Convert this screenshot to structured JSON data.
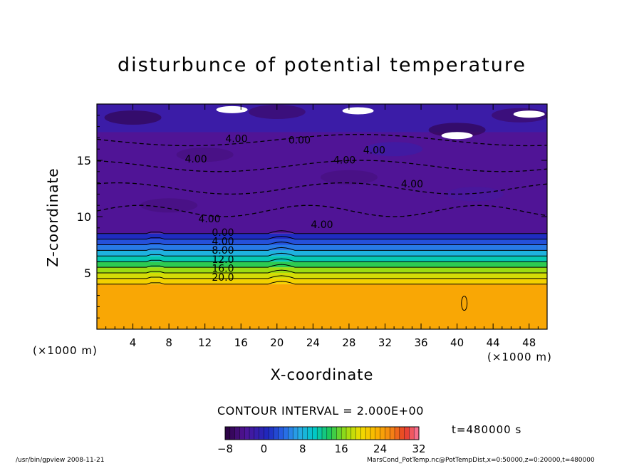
{
  "chart_data": {
    "type": "heatmap",
    "title": "disturbunce of potential temperature",
    "xlabel": "X-coordinate",
    "ylabel": "Z-coordinate",
    "x_unit_left": "(×1000 m)",
    "x_unit_right": "(×1000 m)",
    "xlim": [
      0,
      50
    ],
    "ylim": [
      0,
      20
    ],
    "x_ticks": [
      4,
      8,
      12,
      16,
      20,
      24,
      28,
      32,
      36,
      40,
      44,
      48
    ],
    "x_tick_labels": [
      "4",
      "8",
      "12",
      "16",
      "20",
      "24",
      "28",
      "32",
      "36",
      "40",
      "44",
      "48"
    ],
    "y_ticks": [
      5,
      10,
      15
    ],
    "y_tick_labels": [
      "5",
      "10",
      "15"
    ],
    "contour_interval_label": "CONTOUR INTERVAL = 2.000E+00",
    "contour_interval": 2.0,
    "colorbar": {
      "min": -8,
      "max": 32,
      "ticks": [
        -8,
        0,
        8,
        16,
        24,
        32
      ],
      "tick_labels": [
        "−8",
        "0",
        "8",
        "16",
        "24",
        "32"
      ]
    },
    "contour_labels": [
      {
        "text": "0.00",
        "x": 22.5,
        "z": 16.5
      },
      {
        "text": "4.00",
        "x": 15.5,
        "z": 16.6
      },
      {
        "text": "4.00",
        "x": 11.0,
        "z": 14.8
      },
      {
        "text": "4.00",
        "x": 27.5,
        "z": 14.7
      },
      {
        "text": "4.00",
        "x": 30.8,
        "z": 15.6
      },
      {
        "text": "4.00",
        "x": 35.0,
        "z": 12.6
      },
      {
        "text": "4.00",
        "x": 12.5,
        "z": 9.5
      },
      {
        "text": "4.00",
        "x": 25.0,
        "z": 9.0
      },
      {
        "text": "0.00",
        "x": 14.0,
        "z": 8.3
      },
      {
        "text": "4.00",
        "x": 14.0,
        "z": 7.5
      },
      {
        "text": "8.00",
        "x": 14.0,
        "z": 6.7
      },
      {
        "text": "12.0",
        "x": 14.0,
        "z": 5.9
      },
      {
        "text": "16.0",
        "x": 14.0,
        "z": 5.1
      },
      {
        "text": "20.0",
        "x": 14.0,
        "z": 4.3
      }
    ],
    "layers": [
      {
        "z": [
          0,
          4.0
        ],
        "value": 24
      },
      {
        "z": [
          4.0,
          4.5
        ],
        "value": 21
      },
      {
        "z": [
          4.5,
          5.0
        ],
        "value": 19
      },
      {
        "z": [
          5.0,
          5.5
        ],
        "value": 17
      },
      {
        "z": [
          5.5,
          6.0
        ],
        "value": 14
      },
      {
        "z": [
          6.0,
          6.5
        ],
        "value": 11
      },
      {
        "z": [
          6.5,
          7.0
        ],
        "value": 8
      },
      {
        "z": [
          7.0,
          7.5
        ],
        "value": 5
      },
      {
        "z": [
          7.5,
          8.0
        ],
        "value": 3
      },
      {
        "z": [
          8.0,
          8.5
        ],
        "value": 1
      },
      {
        "z": [
          8.5,
          17.5
        ],
        "value": -4
      },
      {
        "z": [
          17.5,
          20.0
        ],
        "value": -2
      }
    ]
  },
  "time_label": "t=480000 s",
  "footer_left": "/usr/bin/gpview   2008-11-21",
  "footer_right": "MarsCond_PotTemp.nc@PotTempDist,x=0:50000,z=0:20000,t=480000",
  "colors": {
    "missing": "#ffffff",
    "contour": "#000000"
  }
}
